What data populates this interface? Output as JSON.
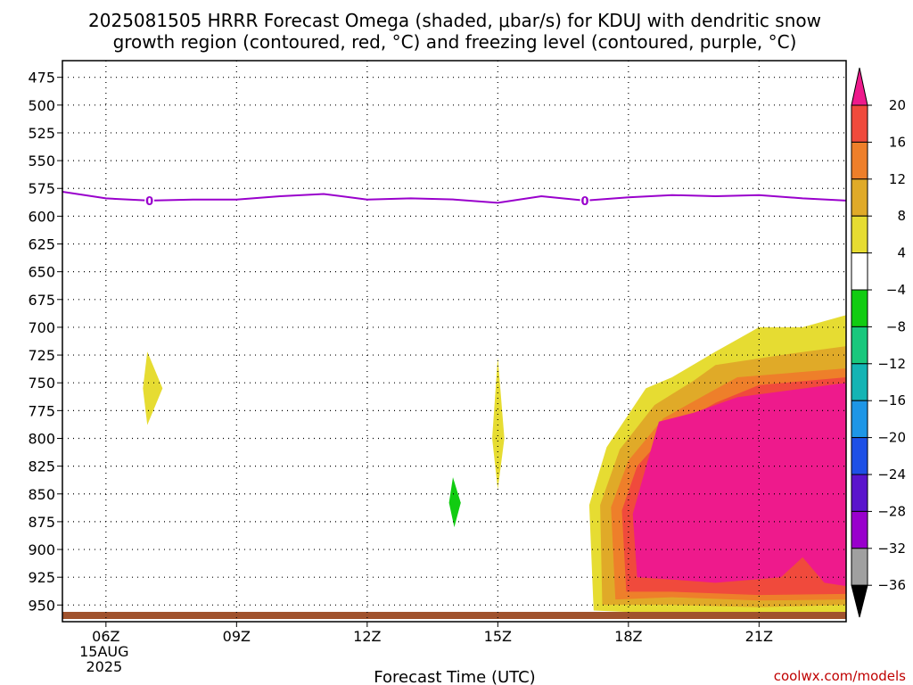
{
  "title": {
    "line1": "2025081505 HRRR Forecast Omega (shaded, μbar/s) for KDUJ with dendritic snow",
    "line2": "growth region (contoured, red, °C) and freezing level (contoured, purple, °C)"
  },
  "credit": "coolwx.com/models",
  "chart_data": {
    "type": "contour",
    "xlabel": "Forecast Time (UTC)",
    "x_ticks": [
      {
        "hour": 6,
        "label": "06Z",
        "sub1": "15AUG",
        "sub2": "2025"
      },
      {
        "hour": 9,
        "label": "09Z"
      },
      {
        "hour": 12,
        "label": "12Z"
      },
      {
        "hour": 15,
        "label": "15Z"
      },
      {
        "hour": 18,
        "label": "18Z"
      },
      {
        "hour": 21,
        "label": "21Z"
      }
    ],
    "xlim": [
      5,
      23
    ],
    "y_ticks": [
      475,
      500,
      525,
      550,
      575,
      600,
      625,
      650,
      675,
      700,
      725,
      750,
      775,
      800,
      825,
      850,
      875,
      900,
      925,
      950
    ],
    "ylim_hPa": [
      460,
      965
    ],
    "grid": "dotted",
    "freezing_level": {
      "color": "#9900cc",
      "label": "0",
      "label_hours": [
        7,
        17
      ],
      "points": [
        [
          5,
          578
        ],
        [
          6,
          584
        ],
        [
          7,
          586
        ],
        [
          8,
          585
        ],
        [
          9,
          585
        ],
        [
          10,
          582
        ],
        [
          11,
          580
        ],
        [
          12,
          585
        ],
        [
          13,
          584
        ],
        [
          14,
          585
        ],
        [
          15,
          588
        ],
        [
          16,
          582
        ],
        [
          17,
          586
        ],
        [
          18,
          583
        ],
        [
          19,
          581
        ],
        [
          20,
          582
        ],
        [
          21,
          581
        ],
        [
          22,
          584
        ],
        [
          23,
          586
        ]
      ]
    },
    "omega_regions": [
      {
        "color": "#e6dc32",
        "points": [
          [
            6.95,
            722
          ],
          [
            7.3,
            755
          ],
          [
            6.95,
            788
          ],
          [
            6.85,
            755
          ]
        ]
      },
      {
        "color": "#e6dc32",
        "points": [
          [
            15.0,
            727
          ],
          [
            15.15,
            800
          ],
          [
            15.0,
            846
          ],
          [
            14.87,
            800
          ]
        ]
      },
      {
        "color": "#11cc11",
        "points": [
          [
            13.97,
            835
          ],
          [
            14.15,
            858
          ],
          [
            14.0,
            880
          ],
          [
            13.88,
            858
          ]
        ]
      },
      {
        "color": "#e6dc32",
        "points": [
          [
            17.2,
            955
          ],
          [
            17.1,
            860
          ],
          [
            17.5,
            808
          ],
          [
            18.4,
            755
          ],
          [
            19.0,
            745
          ],
          [
            20.0,
            722
          ],
          [
            21.0,
            700
          ],
          [
            22.0,
            700
          ],
          [
            23.0,
            689
          ],
          [
            23.0,
            958
          ],
          [
            21.0,
            960
          ],
          [
            19.0,
            958
          ]
        ]
      },
      {
        "color": "#e0aa28",
        "points": [
          [
            17.4,
            950
          ],
          [
            17.35,
            860
          ],
          [
            17.8,
            810
          ],
          [
            18.6,
            770
          ],
          [
            19.5,
            748
          ],
          [
            20.0,
            734
          ],
          [
            21.5,
            725
          ],
          [
            23.0,
            717
          ],
          [
            23.0,
            950
          ],
          [
            21.0,
            952
          ],
          [
            19.0,
            950
          ]
        ]
      },
      {
        "color": "#ee7f2a",
        "points": [
          [
            17.7,
            945
          ],
          [
            17.6,
            862
          ],
          [
            18.0,
            820
          ],
          [
            18.8,
            782
          ],
          [
            19.8,
            760
          ],
          [
            20.5,
            745
          ],
          [
            23.0,
            737
          ],
          [
            23.0,
            945
          ],
          [
            21.0,
            946
          ],
          [
            19.0,
            943
          ]
        ]
      },
      {
        "color": "#f04a3c",
        "points": [
          [
            17.95,
            938
          ],
          [
            17.85,
            865
          ],
          [
            18.2,
            825
          ],
          [
            19.0,
            790
          ],
          [
            20.0,
            768
          ],
          [
            21.0,
            752
          ],
          [
            23.0,
            745
          ],
          [
            23.0,
            940
          ],
          [
            21.0,
            941
          ],
          [
            19.0,
            938
          ]
        ]
      },
      {
        "color": "#ee1a8c",
        "points": [
          [
            18.2,
            925
          ],
          [
            18.1,
            868
          ],
          [
            18.3,
            840
          ],
          [
            18.7,
            785
          ],
          [
            19.5,
            777
          ],
          [
            20.5,
            763
          ],
          [
            23.0,
            750
          ],
          [
            23.0,
            933
          ],
          [
            22.5,
            930
          ],
          [
            22.0,
            907
          ],
          [
            21.5,
            925
          ],
          [
            20.0,
            930
          ],
          [
            19.0,
            927
          ]
        ]
      }
    ],
    "ground_color": "#a0522d",
    "colorbar": {
      "colors": [
        "#ee1a8c",
        "#f04a3c",
        "#ee7f2a",
        "#e0aa28",
        "#e6dc32",
        "#ffffff",
        "#11cc11",
        "#19c87d",
        "#14b4b4",
        "#1e96e6",
        "#1e50e6",
        "#5a14cc",
        "#9900cc",
        "#a0a0a0",
        "#000000"
      ],
      "labels": [
        "20",
        "16",
        "12",
        "8",
        "4",
        "−4",
        "−8",
        "−12",
        "−16",
        "−20",
        "−24",
        "−28",
        "−32",
        "−36"
      ]
    }
  }
}
